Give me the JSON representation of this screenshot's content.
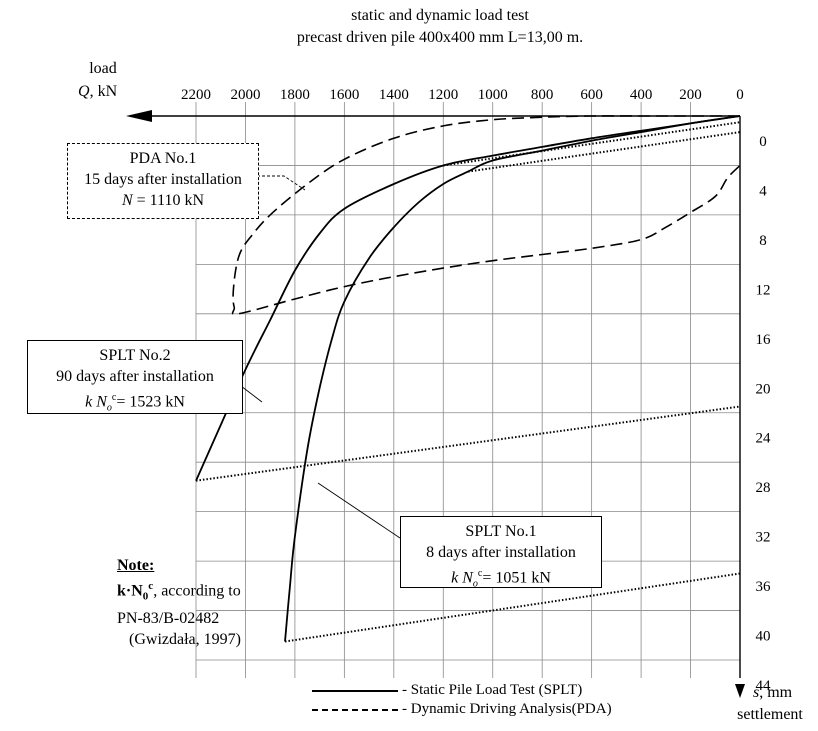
{
  "chart_data": {
    "type": "line",
    "title": "static and dynamic load test",
    "subtitle": "precast driven pile 400x400 mm L=13,00 m.",
    "xlabel_top": "load",
    "xlabel_q": "Q",
    "xlabel_unit": ", kN",
    "ylabel_s": "s",
    "ylabel_unit": ", mm",
    "ylabel_word": "settlement",
    "x_reversed": true,
    "xlim": [
      0,
      2200
    ],
    "ylim": [
      0,
      44
    ],
    "x_ticks": [
      "2200",
      "2000",
      "1800",
      "1600",
      "1400",
      "1200",
      "1000",
      "800",
      "600",
      "400",
      "200",
      "0"
    ],
    "y_ticks": [
      "0",
      "4",
      "8",
      "12",
      "16",
      "20",
      "24",
      "28",
      "32",
      "36",
      "40",
      "44"
    ],
    "grid": true,
    "series": [
      {
        "name": "Static Pile Load Test (SPLT)",
        "label": "SPLT No.2",
        "style": "solid",
        "x": [
          0,
          200,
          400,
          600,
          800,
          1000,
          1200,
          1400,
          1600,
          1700,
          1800,
          1900,
          2000,
          2100,
          2200
        ],
        "y": [
          0,
          0.6,
          1.2,
          1.8,
          2.5,
          3.2,
          4.0,
          5.5,
          7.5,
          9.5,
          12.5,
          16.5,
          20.5,
          25.0,
          29.5
        ]
      },
      {
        "name": "Static Pile Load Test (SPLT)",
        "label": "SPLT No.1",
        "style": "solid",
        "x": [
          0,
          200,
          400,
          600,
          800,
          1000,
          1100,
          1200,
          1300,
          1400,
          1500,
          1600,
          1650,
          1700,
          1750,
          1800,
          1820,
          1840
        ],
        "y": [
          0,
          0.6,
          1.3,
          2.0,
          2.8,
          3.6,
          4.5,
          5.5,
          7.0,
          9.0,
          11.5,
          15.0,
          18.0,
          22.0,
          27.0,
          34.0,
          38.0,
          42.5
        ]
      },
      {
        "name": "Static Pile Load Test (SPLT)",
        "label": "SPLT No.2 unloading",
        "style": "dotted",
        "x": [
          2200,
          0
        ],
        "y": [
          29.5,
          23.5
        ]
      },
      {
        "name": "Static Pile Load Test (SPLT)",
        "label": "SPLT No.1 unloading",
        "style": "dotted",
        "x": [
          1840,
          0
        ],
        "y": [
          42.5,
          37
        ]
      },
      {
        "name": "Static Pile Load Test (SPLT)",
        "label": "SPLT No.1 early unloading",
        "style": "dotted",
        "x": [
          1100,
          0
        ],
        "y": [
          4.5,
          1.3
        ]
      },
      {
        "name": "Static Pile Load Test (SPLT)",
        "label": "SPLT No.2 early unloading",
        "style": "dotted",
        "x": [
          1200,
          0
        ],
        "y": [
          4.0,
          0.5
        ]
      },
      {
        "name": "Dynamic Driving Analysis(PDA)",
        "label": "PDA No.1",
        "style": "dashed",
        "x": [
          0,
          200,
          400,
          600,
          800,
          1000,
          1200,
          1400,
          1600,
          1750,
          1900,
          1980,
          2020,
          2040,
          2050,
          2045,
          2030,
          1800,
          1600,
          1400,
          1200,
          1000,
          800,
          600,
          400,
          300,
          200,
          100,
          50,
          0
        ],
        "y": [
          0,
          0,
          0,
          0,
          0.1,
          0.3,
          0.8,
          1.8,
          3.5,
          5.5,
          8.0,
          9.8,
          11.0,
          12.5,
          14.5,
          15.5,
          16.0,
          14.8,
          13.8,
          13.0,
          12.3,
          11.7,
          11.2,
          10.7,
          10.0,
          9.0,
          7.8,
          6.5,
          5.0,
          4.0
        ]
      }
    ],
    "legend": [
      "Static Pile Load Test (SPLT)",
      "Dynamic Driving Analysis(PDA)"
    ],
    "legend_placement": "bottom"
  },
  "boxes": {
    "pda": {
      "line1": "PDA No.1",
      "line2": "15 days after installation",
      "line3_var": "N",
      "line3_rest": " = 1110 kN"
    },
    "splt2": {
      "line1": "SPLT No.2",
      "line2": "90 days after installation",
      "k": "k",
      "n": "N",
      "sub": "o",
      "sup": "c",
      "rest": "= 1523 kN"
    },
    "splt1": {
      "line1": "SPLT No.1",
      "line2": "8 days after installation",
      "k": "k",
      "n": "N",
      "sub": "o",
      "sup": "c",
      "rest": "= 1051 kN"
    }
  },
  "note": {
    "title": "Note:",
    "kn_k": "k·N",
    "kn_sub": "0",
    "kn_sup": "c",
    "kn_rest": ",  according to",
    "line2": "PN-83/B-02482",
    "line3": "(Gwizdała, 1997)"
  },
  "legend_labels": {
    "splt": "- Static Pile Load Test (SPLT)",
    "pda": "- Dynamic Driving Analysis(PDA)"
  }
}
